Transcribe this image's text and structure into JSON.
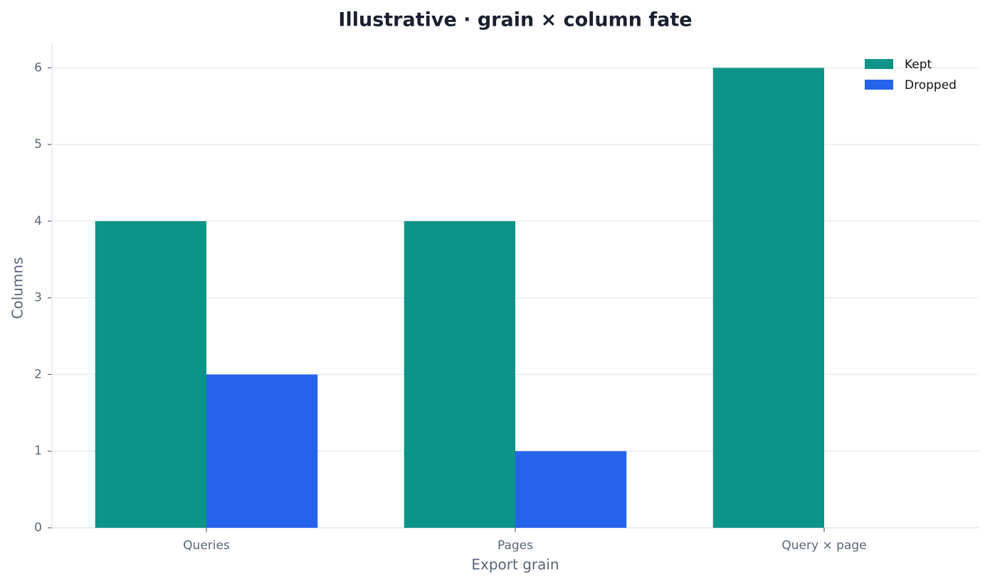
{
  "chart_data": {
    "type": "bar",
    "title": "Illustrative · grain × column fate",
    "x_label": "Export grain",
    "y_label": "Columns",
    "categories": [
      "Queries",
      "Pages",
      "Query × page"
    ],
    "series": [
      {
        "name": "Kept",
        "color": "#0d9488",
        "values": [
          4,
          4,
          6
        ]
      },
      {
        "name": "Dropped",
        "color": "#2563eb",
        "values": [
          2,
          1,
          0
        ]
      }
    ],
    "ylim": [
      0,
      6.3
    ],
    "yticks": [
      0,
      1,
      2,
      3,
      4,
      5,
      6
    ],
    "grid": true,
    "legend": "upper-right"
  }
}
